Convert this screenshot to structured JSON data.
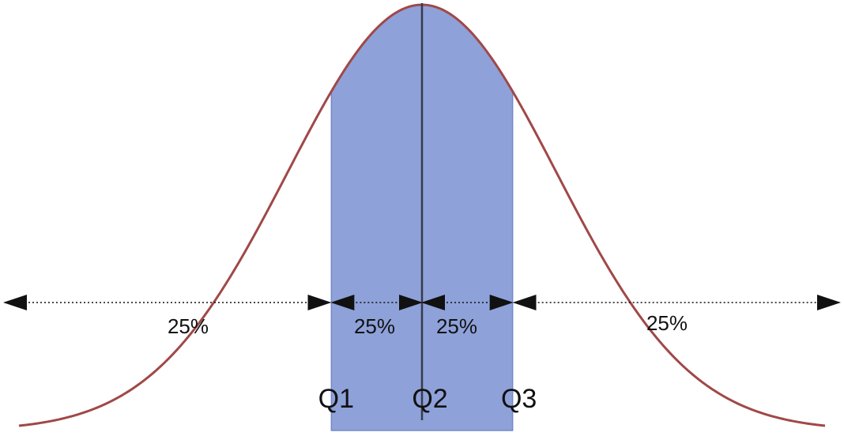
{
  "diagram": {
    "curve_color": "#a04848",
    "iqr_fill_color": "#8ea1d9",
    "iqr_edge_color": "#7488c8",
    "median_line_color": "#3a3a4a",
    "arrow_color": "#111111",
    "quartiles": [
      {
        "name": "Q1",
        "z": -0.6745
      },
      {
        "name": "Q2",
        "z": 0
      },
      {
        "name": "Q3",
        "z": 0.6745
      }
    ],
    "segments": [
      {
        "label": "25%"
      },
      {
        "label": "25%"
      },
      {
        "label": "25%"
      },
      {
        "label": "25%"
      }
    ],
    "z_range": [
      -3,
      3
    ]
  }
}
